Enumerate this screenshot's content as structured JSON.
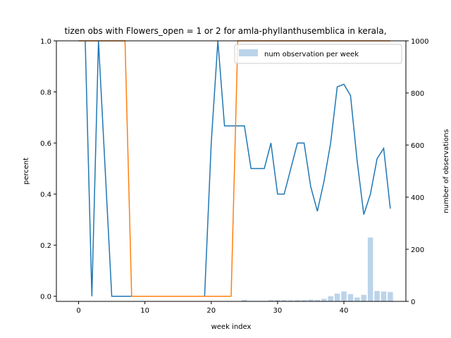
{
  "chart_data": {
    "type": "line",
    "title": "tizen obs with Flowers_open = 1 or 2 for amla-phyllanthusemblica in kerala,",
    "xlabel": "week index",
    "ylabel": "percent",
    "y2label": "number of observations",
    "xlim": [
      -3.35,
      49.35
    ],
    "ylim": [
      -0.02,
      1.0
    ],
    "y2lim": [
      0,
      1000
    ],
    "xticks": [
      0,
      10,
      20,
      30,
      40
    ],
    "yticks": [
      0.0,
      0.2,
      0.4,
      0.6,
      0.8,
      1.0
    ],
    "y2ticks": [
      0,
      200,
      400,
      600,
      800,
      1000
    ],
    "legend": {
      "label": "num observation per week",
      "placement": "top-right"
    },
    "grid": false,
    "colors": {
      "blue_line": "#1f77b4",
      "orange_line": "#ff7f0e",
      "bars": "#bcd4ea"
    },
    "series": [
      {
        "axis": "left",
        "color": "#1f77b4",
        "x": [
          1,
          2,
          3,
          4,
          5,
          6,
          7,
          8,
          9,
          10,
          11,
          12,
          13,
          14,
          15,
          16,
          17,
          18,
          19,
          20,
          21,
          22,
          23,
          24,
          25,
          26,
          27,
          28,
          29,
          30,
          31,
          32,
          33,
          34,
          35,
          36,
          37,
          38,
          39,
          40,
          41,
          42,
          43,
          44,
          45,
          46,
          47
        ],
        "values": [
          1.0,
          0.0,
          1.0,
          0.5,
          0.0,
          0.0,
          0.0,
          0.0,
          0.0,
          0.0,
          0.0,
          0.0,
          0.0,
          0.0,
          0.0,
          0.0,
          0.0,
          0.0,
          0.0,
          0.6,
          1.0,
          0.667,
          0.667,
          0.667,
          0.667,
          0.5,
          0.5,
          0.5,
          0.6,
          0.4,
          0.4,
          0.5,
          0.6,
          0.6,
          0.429,
          0.333,
          0.45,
          0.6,
          0.82,
          0.83,
          0.786,
          0.53,
          0.32,
          0.4,
          0.538,
          0.579,
          0.343
        ]
      },
      {
        "axis": "left",
        "color": "#ff7f0e",
        "x": [
          0,
          1,
          2,
          3,
          4,
          5,
          6,
          7,
          8,
          9,
          10,
          11,
          12,
          13,
          14,
          15,
          16,
          17,
          18,
          19,
          20,
          21,
          22,
          23,
          24,
          25,
          26,
          27,
          28,
          29,
          30,
          31,
          32,
          33,
          34,
          35,
          36,
          37,
          38,
          39,
          40,
          41,
          42,
          43,
          44,
          45,
          46,
          47
        ],
        "values": [
          1,
          1,
          1,
          1,
          1,
          1,
          1,
          1,
          0,
          0,
          0,
          0,
          0,
          0,
          0,
          0,
          0,
          0,
          0,
          0,
          0,
          0,
          0,
          0,
          1,
          1,
          1,
          1,
          1,
          1,
          1,
          1,
          1,
          1,
          1,
          1,
          1,
          1,
          1,
          1,
          1,
          1,
          1,
          1,
          1,
          1,
          1,
          1
        ]
      },
      {
        "axis": "right",
        "type": "bar",
        "name": "num observation per week",
        "color": "#bcd4ea",
        "x": [
          25,
          26,
          27,
          28,
          29,
          30,
          31,
          32,
          33,
          34,
          35,
          36,
          37,
          38,
          39,
          40,
          41,
          42,
          43,
          44,
          45,
          46,
          47
        ],
        "values": [
          6,
          2,
          2,
          2,
          5,
          5,
          5,
          4,
          5,
          5,
          7,
          6,
          10,
          20,
          30,
          38,
          28,
          15,
          25,
          245,
          40,
          38,
          36
        ]
      }
    ]
  }
}
